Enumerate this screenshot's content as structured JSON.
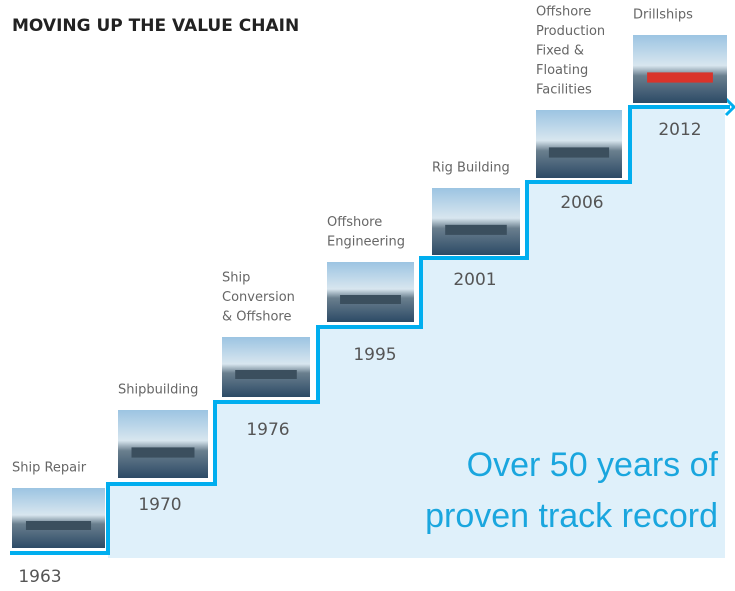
{
  "header": {
    "title": "MOVING UP THE VALUE CHAIN"
  },
  "steps": [
    {
      "label": [
        "Ship Repair"
      ],
      "year": "1963"
    },
    {
      "label": [
        "Shipbuilding"
      ],
      "year": "1970"
    },
    {
      "label": [
        "Ship",
        "Conversion",
        "& Offshore"
      ],
      "year": "1976"
    },
    {
      "label": [
        "Offshore",
        "Engineering"
      ],
      "year": "1995"
    },
    {
      "label": [
        "Rig Building"
      ],
      "year": "2001"
    },
    {
      "label": [
        "Offshore",
        "Production",
        "Fixed &",
        "Floating",
        "Facilities"
      ],
      "year": "2006"
    },
    {
      "label": [
        "Drillships"
      ],
      "year": "2012"
    }
  ],
  "tagline": [
    "Over 50 years of",
    "proven track record"
  ]
}
